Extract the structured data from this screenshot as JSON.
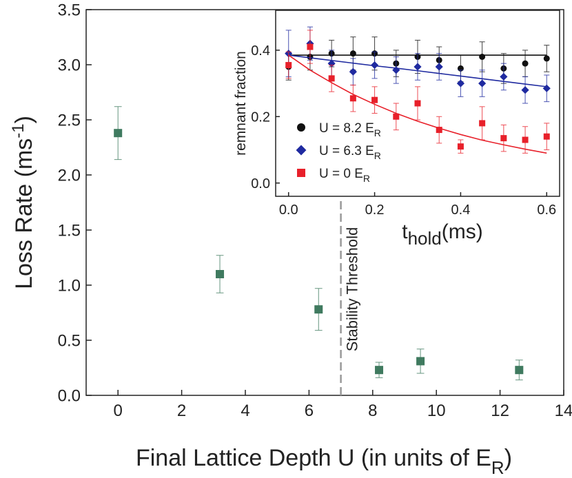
{
  "chart_data": [
    {
      "type": "scatter",
      "xlabel": [
        "Final Lattice Depth U (in units of E",
        "R",
        ")"
      ],
      "ylabel": [
        "Loss Rate (ms",
        "-1",
        ")"
      ],
      "x": [
        0,
        3.2,
        6.3,
        8.2,
        9.5,
        12.6
      ],
      "series": [
        {
          "color": "#3f7a5f",
          "marker": "square",
          "values": [
            2.38,
            1.1,
            0.78,
            0.23,
            0.31,
            0.23
          ],
          "errors": [
            0.24,
            0.17,
            0.19,
            0.07,
            0.11,
            0.09
          ]
        }
      ],
      "xlim": [
        -1,
        14
      ],
      "xticks": [
        0,
        2,
        4,
        6,
        8,
        10,
        12,
        14
      ],
      "ylim": [
        0,
        3.5
      ],
      "yticks": [
        {
          "value": 0,
          "label": "0.0"
        },
        0.5,
        {
          "value": 1,
          "label": "1.0"
        },
        1.5,
        {
          "value": 2,
          "label": "2.0"
        },
        2.5,
        {
          "value": 3,
          "label": "3.0"
        },
        3.5
      ],
      "threshold": {
        "x": 7,
        "label": "Stability Threshold",
        "color": "#999999"
      }
    },
    {
      "type": "scatter",
      "xlabel": [
        "t",
        "hold",
        "(ms)"
      ],
      "ylabel": [
        "remnant fraction"
      ],
      "x": [
        0,
        0.05,
        0.1,
        0.15,
        0.2,
        0.25,
        0.3,
        0.35,
        0.4,
        0.45,
        0.5,
        0.55,
        0.6
      ],
      "series": [
        {
          "name": [
            "U = 8.2 E",
            "R"
          ],
          "color": "#111111",
          "marker": "circle",
          "values": [
            0.35,
            0.38,
            0.39,
            0.39,
            0.39,
            0.36,
            0.38,
            0.37,
            0.345,
            0.38,
            0.345,
            0.36,
            0.375
          ],
          "errors": [
            0.04,
            0.04,
            0.04,
            0.05,
            0.05,
            0.04,
            0.05,
            0.04,
            0.04,
            0.045,
            0.045,
            0.04,
            0.04
          ],
          "fit": [
            0.385,
            0.385,
            0.385,
            0.385,
            0.385,
            0.385,
            0.385,
            0.385,
            0.385,
            0.385,
            0.385,
            0.385,
            0.385
          ]
        },
        {
          "name": [
            "U = 6.3 E",
            "R"
          ],
          "color": "#1f2aa0",
          "marker": "diamond",
          "values": [
            0.39,
            0.42,
            0.36,
            0.335,
            0.355,
            0.34,
            0.35,
            0.35,
            0.3,
            0.3,
            0.32,
            0.28,
            0.285
          ],
          "errors": [
            0.07,
            0.05,
            0.04,
            0.04,
            0.04,
            0.04,
            0.04,
            0.04,
            0.04,
            0.04,
            0.04,
            0.04,
            0.04
          ],
          "fit": [
            0.385,
            0.377,
            0.369,
            0.361,
            0.353,
            0.346,
            0.338,
            0.33,
            0.322,
            0.314,
            0.306,
            0.298,
            0.29
          ]
        },
        {
          "name": [
            "U = 0 E",
            "R"
          ],
          "color": "#e8202a",
          "marker": "square",
          "values": [
            0.355,
            0.41,
            0.315,
            0.255,
            0.25,
            0.2,
            0.24,
            0.16,
            0.11,
            0.18,
            0.135,
            0.13,
            0.14
          ],
          "errors": [
            0.04,
            0.05,
            0.04,
            0.04,
            0.04,
            0.04,
            0.05,
            0.04,
            0.02,
            0.05,
            0.04,
            0.04,
            0.04
          ],
          "fit": [
            0.385,
            0.34,
            0.302,
            0.267,
            0.237,
            0.21,
            0.186,
            0.165,
            0.146,
            0.129,
            0.115,
            0.102,
            0.09
          ]
        }
      ],
      "xlim": [
        -0.03,
        0.63
      ],
      "xticks": [
        {
          "value": 0,
          "label": "0.0"
        },
        0.2,
        0.4,
        0.6
      ],
      "ylim": [
        -0.04,
        0.52
      ],
      "yticks": [
        {
          "value": 0,
          "label": "0.0"
        },
        0.2,
        0.4
      ]
    }
  ]
}
